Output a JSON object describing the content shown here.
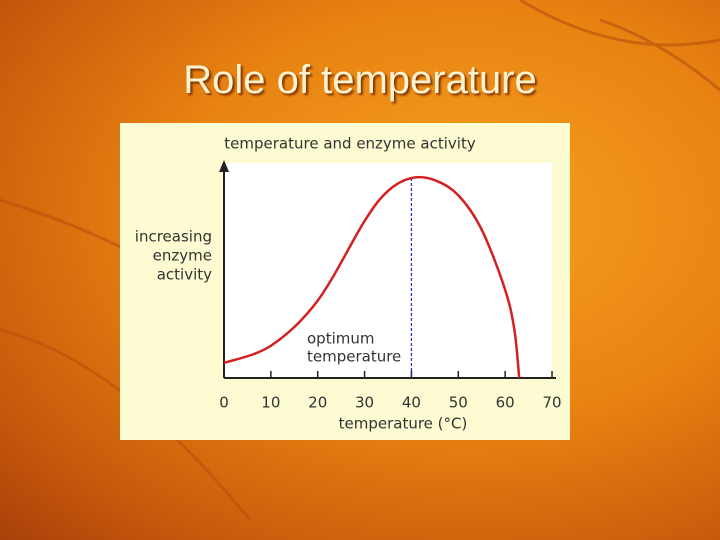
{
  "slide_title": "Role of temperature",
  "chart_data": {
    "type": "line",
    "title": "temperature and enzyme activity",
    "x_label": "temperature (°C)",
    "y_label": [
      "increasing",
      "enzyme",
      "activity"
    ],
    "annotation": [
      "optimum",
      "temperature"
    ],
    "optimum": 40,
    "x": [
      0,
      10,
      20,
      30,
      35,
      40,
      45,
      50,
      55,
      60,
      62,
      63
    ],
    "series": [
      {
        "name": "enzyme activity",
        "color": "#d42020",
        "values": [
          7,
          15,
          36,
          73,
          87,
          93,
          92,
          85,
          69,
          41,
          22,
          0
        ]
      }
    ],
    "xlim": [
      0,
      70
    ],
    "xticks": [
      0,
      10,
      20,
      30,
      40,
      50,
      60,
      70
    ],
    "ylim": [
      0,
      100
    ],
    "grid": false
  }
}
